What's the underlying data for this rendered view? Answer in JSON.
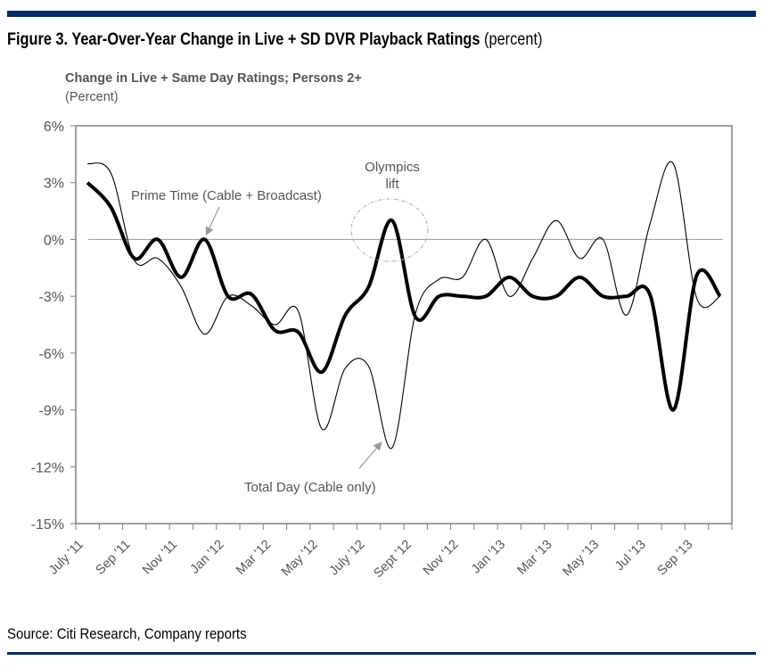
{
  "title": {
    "bold": "Figure 3. Year-Over-Year Change in Live + SD DVR Playback Ratings",
    "light": "(percent)"
  },
  "subtitle": "Change in Live + Same Day Ratings; Persons 2+",
  "unit_label": "(Percent)",
  "source": "Source: Citi Research, Company reports",
  "colors": {
    "rule": "#002b6e",
    "series": "#000000",
    "axis": "#808080",
    "annotation": "#555555"
  },
  "chart_data": {
    "type": "line",
    "ylim": [
      -15,
      6
    ],
    "yticks": [
      6,
      3,
      0,
      -3,
      -6,
      -9,
      -12,
      -15
    ],
    "ytick_labels": [
      "6%",
      "3%",
      "0%",
      "-3%",
      "-6%",
      "-9%",
      "-12%",
      "-15%"
    ],
    "grid": false,
    "zero_line": true,
    "x": [
      "Jul '11",
      "Aug '11",
      "Sep '11",
      "Oct '11",
      "Nov '11",
      "Dec '11",
      "Jan '12",
      "Feb '12",
      "Mar '12",
      "Apr '12",
      "May '12",
      "Jun '12",
      "Jul '12",
      "Aug '12",
      "Sep '12",
      "Oct '12",
      "Nov '12",
      "Dec '12",
      "Jan '13",
      "Feb '13",
      "Mar '13",
      "Apr '13",
      "May '13",
      "Jun '13",
      "Jul '13",
      "Aug '13",
      "Sep '13",
      "Oct '13"
    ],
    "xtick_labels": [
      "July '11",
      "Sep '11",
      "Nov '11",
      "Jan '12",
      "Mar '12",
      "May '12",
      "July '12",
      "Sept '12",
      "Nov '12",
      "Jan '13",
      "Mar '13",
      "May '13",
      "Jul '13",
      "Sep '13"
    ],
    "series": [
      {
        "name": "Prime Time (Cable + Broadcast)",
        "style": "thick",
        "values": [
          3.0,
          1.7,
          -1.0,
          0.0,
          -2.0,
          0.0,
          -3.0,
          -2.9,
          -4.8,
          -4.9,
          -7.0,
          -4.0,
          -2.5,
          1.0,
          -4.1,
          -3.0,
          -3.0,
          -3.0,
          -2.0,
          -3.0,
          -3.0,
          -2.0,
          -3.0,
          -3.0,
          -2.9,
          -9.0,
          -1.9,
          -3.0
        ]
      },
      {
        "name": "Total Day (Cable only)",
        "style": "thin",
        "values": [
          4.0,
          3.5,
          -1.1,
          -1.0,
          -2.5,
          -5.0,
          -3.0,
          -3.5,
          -4.5,
          -3.8,
          -10.0,
          -6.8,
          -6.7,
          -11.0,
          -3.9,
          -2.1,
          -2.0,
          0.0,
          -3.0,
          -1.0,
          1.0,
          -1.0,
          0.0,
          -4.0,
          0.8,
          4.0,
          -3.1,
          -3.0
        ]
      }
    ],
    "annotations": [
      "Olympics",
      "lift"
    ]
  }
}
